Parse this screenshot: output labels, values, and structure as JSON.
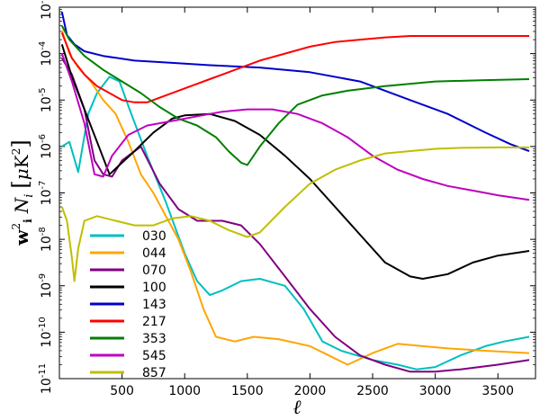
{
  "chart_data": {
    "type": "line",
    "title": "",
    "xlabel": "ℓ",
    "ylabel": "w_i^2 N_i [μK^2]",
    "xlim": [
      0,
      3800
    ],
    "ylim_log10": [
      -11,
      -3
    ],
    "yscale": "log",
    "xticks": [
      "500",
      "1000",
      "1500",
      "2000",
      "2500",
      "3000",
      "3500"
    ],
    "yticks": [
      "10-11",
      "10-10",
      "10-9",
      "10-8",
      "10-7",
      "10-6",
      "10-5",
      "10-4",
      "10-3"
    ],
    "grid": false,
    "legend_position": "lower-left",
    "series": [
      {
        "name": "030",
        "color": "#00bfbf",
        "points": [
          [
            20,
            -6.0
          ],
          [
            80,
            -5.9
          ],
          [
            150,
            -6.55
          ],
          [
            230,
            -5.3
          ],
          [
            300,
            -4.85
          ],
          [
            400,
            -4.5
          ],
          [
            480,
            -4.6
          ],
          [
            560,
            -5.2
          ],
          [
            700,
            -6.2
          ],
          [
            850,
            -7.2
          ],
          [
            1000,
            -8.3
          ],
          [
            1100,
            -8.9
          ],
          [
            1200,
            -9.2
          ],
          [
            1300,
            -9.1
          ],
          [
            1450,
            -8.9
          ],
          [
            1600,
            -8.85
          ],
          [
            1800,
            -9.0
          ],
          [
            1950,
            -9.5
          ],
          [
            2100,
            -10.2
          ],
          [
            2250,
            -10.4
          ],
          [
            2500,
            -10.6
          ],
          [
            2700,
            -10.7
          ],
          [
            2850,
            -10.8
          ],
          [
            3000,
            -10.75
          ],
          [
            3200,
            -10.5
          ],
          [
            3400,
            -10.3
          ],
          [
            3550,
            -10.2
          ],
          [
            3750,
            -10.1
          ]
        ]
      },
      {
        "name": "044",
        "color": "#ffa500",
        "points": [
          [
            20,
            -3.5
          ],
          [
            80,
            -4.0
          ],
          [
            150,
            -4.3
          ],
          [
            250,
            -4.6
          ],
          [
            350,
            -5.0
          ],
          [
            450,
            -5.3
          ],
          [
            550,
            -5.9
          ],
          [
            650,
            -6.6
          ],
          [
            750,
            -7.0
          ],
          [
            850,
            -7.5
          ],
          [
            950,
            -8.0
          ],
          [
            1050,
            -8.7
          ],
          [
            1150,
            -9.5
          ],
          [
            1250,
            -10.1
          ],
          [
            1400,
            -10.2
          ],
          [
            1550,
            -10.1
          ],
          [
            1750,
            -10.15
          ],
          [
            2000,
            -10.3
          ],
          [
            2150,
            -10.5
          ],
          [
            2300,
            -10.7
          ],
          [
            2500,
            -10.45
          ],
          [
            2700,
            -10.25
          ],
          [
            2900,
            -10.3
          ],
          [
            3100,
            -10.35
          ],
          [
            3400,
            -10.4
          ],
          [
            3750,
            -10.45
          ]
        ]
      },
      {
        "name": "070",
        "color": "#800080",
        "points": [
          [
            20,
            -4.1
          ],
          [
            100,
            -4.45
          ],
          [
            200,
            -5.2
          ],
          [
            280,
            -6.3
          ],
          [
            350,
            -6.6
          ],
          [
            420,
            -6.65
          ],
          [
            500,
            -6.3
          ],
          [
            650,
            -6.0
          ],
          [
            800,
            -6.8
          ],
          [
            950,
            -7.35
          ],
          [
            1100,
            -7.6
          ],
          [
            1300,
            -7.6
          ],
          [
            1450,
            -7.7
          ],
          [
            1600,
            -8.1
          ],
          [
            1800,
            -8.8
          ],
          [
            2000,
            -9.5
          ],
          [
            2200,
            -10.1
          ],
          [
            2400,
            -10.5
          ],
          [
            2600,
            -10.7
          ],
          [
            2800,
            -10.85
          ],
          [
            3000,
            -10.85
          ],
          [
            3200,
            -10.8
          ],
          [
            3500,
            -10.7
          ],
          [
            3750,
            -10.6
          ]
        ]
      },
      {
        "name": "100",
        "color": "#000000",
        "points": [
          [
            20,
            -3.8
          ],
          [
            100,
            -4.5
          ],
          [
            200,
            -5.2
          ],
          [
            300,
            -5.9
          ],
          [
            400,
            -6.6
          ],
          [
            500,
            -6.35
          ],
          [
            600,
            -6.1
          ],
          [
            750,
            -5.7
          ],
          [
            900,
            -5.4
          ],
          [
            1000,
            -5.33
          ],
          [
            1200,
            -5.3
          ],
          [
            1400,
            -5.45
          ],
          [
            1600,
            -5.75
          ],
          [
            1800,
            -6.2
          ],
          [
            2000,
            -6.7
          ],
          [
            2200,
            -7.3
          ],
          [
            2400,
            -7.9
          ],
          [
            2600,
            -8.5
          ],
          [
            2800,
            -8.8
          ],
          [
            2900,
            -8.85
          ],
          [
            3100,
            -8.75
          ],
          [
            3300,
            -8.5
          ],
          [
            3500,
            -8.35
          ],
          [
            3750,
            -8.25
          ]
        ]
      },
      {
        "name": "143",
        "color": "#0000cc",
        "points": [
          [
            20,
            -3.1
          ],
          [
            60,
            -3.6
          ],
          [
            120,
            -3.8
          ],
          [
            200,
            -3.95
          ],
          [
            350,
            -4.05
          ],
          [
            600,
            -4.15
          ],
          [
            900,
            -4.2
          ],
          [
            1200,
            -4.25
          ],
          [
            1600,
            -4.3
          ],
          [
            2000,
            -4.4
          ],
          [
            2400,
            -4.6
          ],
          [
            2800,
            -5.0
          ],
          [
            3100,
            -5.3
          ],
          [
            3400,
            -5.7
          ],
          [
            3600,
            -5.95
          ],
          [
            3750,
            -6.1
          ]
        ]
      },
      {
        "name": "217",
        "color": "#ff0000",
        "points": [
          [
            20,
            -3.55
          ],
          [
            100,
            -4.1
          ],
          [
            200,
            -4.45
          ],
          [
            300,
            -4.7
          ],
          [
            400,
            -4.85
          ],
          [
            500,
            -5.0
          ],
          [
            600,
            -5.05
          ],
          [
            700,
            -5.05
          ],
          [
            850,
            -4.9
          ],
          [
            1000,
            -4.75
          ],
          [
            1200,
            -4.55
          ],
          [
            1400,
            -4.35
          ],
          [
            1600,
            -4.15
          ],
          [
            1800,
            -4.0
          ],
          [
            2000,
            -3.85
          ],
          [
            2200,
            -3.75
          ],
          [
            2400,
            -3.7
          ],
          [
            2600,
            -3.65
          ],
          [
            2800,
            -3.62
          ],
          [
            3100,
            -3.62
          ],
          [
            3400,
            -3.62
          ],
          [
            3750,
            -3.62
          ]
        ]
      },
      {
        "name": "353",
        "color": "#007f00",
        "points": [
          [
            20,
            -3.4
          ],
          [
            80,
            -3.7
          ],
          [
            200,
            -4.05
          ],
          [
            350,
            -4.35
          ],
          [
            500,
            -4.6
          ],
          [
            650,
            -4.85
          ],
          [
            800,
            -5.15
          ],
          [
            950,
            -5.4
          ],
          [
            1100,
            -5.55
          ],
          [
            1250,
            -5.8
          ],
          [
            1350,
            -6.1
          ],
          [
            1450,
            -6.35
          ],
          [
            1500,
            -6.4
          ],
          [
            1600,
            -6.0
          ],
          [
            1750,
            -5.5
          ],
          [
            1900,
            -5.1
          ],
          [
            2100,
            -4.9
          ],
          [
            2300,
            -4.8
          ],
          [
            2600,
            -4.7
          ],
          [
            3000,
            -4.6
          ],
          [
            3400,
            -4.57
          ],
          [
            3750,
            -4.55
          ]
        ]
      },
      {
        "name": "545",
        "color": "#bf00bf",
        "points": [
          [
            20,
            -4.0
          ],
          [
            100,
            -4.6
          ],
          [
            200,
            -5.5
          ],
          [
            280,
            -6.6
          ],
          [
            350,
            -6.65
          ],
          [
            420,
            -6.2
          ],
          [
            550,
            -5.75
          ],
          [
            700,
            -5.55
          ],
          [
            900,
            -5.45
          ],
          [
            1100,
            -5.35
          ],
          [
            1300,
            -5.25
          ],
          [
            1500,
            -5.2
          ],
          [
            1700,
            -5.2
          ],
          [
            1900,
            -5.3
          ],
          [
            2100,
            -5.5
          ],
          [
            2300,
            -5.8
          ],
          [
            2500,
            -6.2
          ],
          [
            2700,
            -6.5
          ],
          [
            2900,
            -6.7
          ],
          [
            3100,
            -6.85
          ],
          [
            3300,
            -6.95
          ],
          [
            3500,
            -7.05
          ],
          [
            3750,
            -7.15
          ]
        ]
      },
      {
        "name": "857",
        "color": "#bfbf00",
        "points": [
          [
            20,
            -7.3
          ],
          [
            60,
            -7.6
          ],
          [
            100,
            -8.4
          ],
          [
            120,
            -8.9
          ],
          [
            150,
            -8.2
          ],
          [
            200,
            -7.6
          ],
          [
            300,
            -7.5
          ],
          [
            450,
            -7.6
          ],
          [
            600,
            -7.7
          ],
          [
            750,
            -7.7
          ],
          [
            900,
            -7.55
          ],
          [
            1050,
            -7.5
          ],
          [
            1200,
            -7.6
          ],
          [
            1350,
            -7.8
          ],
          [
            1500,
            -7.95
          ],
          [
            1600,
            -7.85
          ],
          [
            1800,
            -7.3
          ],
          [
            2000,
            -6.8
          ],
          [
            2200,
            -6.5
          ],
          [
            2400,
            -6.3
          ],
          [
            2600,
            -6.15
          ],
          [
            2800,
            -6.1
          ],
          [
            3000,
            -6.05
          ],
          [
            3200,
            -6.03
          ],
          [
            3500,
            -6.02
          ],
          [
            3750,
            -6.02
          ]
        ]
      }
    ]
  }
}
